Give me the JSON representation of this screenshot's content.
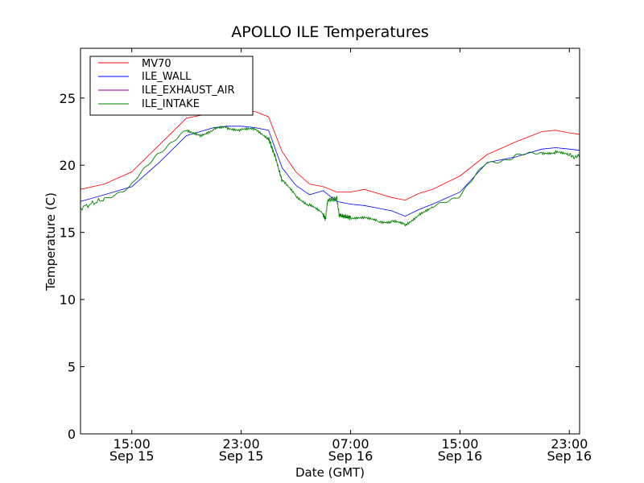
{
  "chart_data": {
    "type": "line",
    "title": "APOLLO ILE Temperatures",
    "xlabel": "Date (GMT)",
    "ylabel": "Temperature (C)",
    "xlim": [
      "2014-09-15T11:15",
      "2014-09-16T23:45"
    ],
    "ylim": [
      0,
      28.7
    ],
    "grid": false,
    "legend_position": "top-left",
    "yticks": [
      0,
      5,
      10,
      15,
      20,
      25
    ],
    "xticks": [
      {
        "x": "2014-09-15T15:00",
        "line1": "15:00",
        "line2": "Sep 15"
      },
      {
        "x": "2014-09-15T23:00",
        "line1": "23:00",
        "line2": "Sep 15"
      },
      {
        "x": "2014-09-16T07:00",
        "line1": "07:00",
        "line2": "Sep 16"
      },
      {
        "x": "2014-09-16T15:00",
        "line1": "15:00",
        "line2": "Sep 16"
      },
      {
        "x": "2014-09-16T23:00",
        "line1": "23:00",
        "line2": "Sep 16"
      }
    ],
    "series": [
      {
        "name": "MV70",
        "color": "#ff0000",
        "x": [
          "2014-09-15T11:15",
          "2014-09-15T13:00",
          "2014-09-15T15:00",
          "2014-09-15T17:00",
          "2014-09-15T19:00",
          "2014-09-15T20:00",
          "2014-09-15T21:00",
          "2014-09-15T22:00",
          "2014-09-15T23:00",
          "2014-09-16T00:00",
          "2014-09-16T01:00",
          "2014-09-16T02:00",
          "2014-09-16T03:00",
          "2014-09-16T04:00",
          "2014-09-16T05:00",
          "2014-09-16T06:00",
          "2014-09-16T07:00",
          "2014-09-16T08:00",
          "2014-09-16T09:00",
          "2014-09-16T10:00",
          "2014-09-16T11:00",
          "2014-09-16T12:00",
          "2014-09-16T13:00",
          "2014-09-16T15:00",
          "2014-09-16T17:00",
          "2014-09-16T19:00",
          "2014-09-16T21:00",
          "2014-09-16T22:00",
          "2014-09-16T23:00",
          "2014-09-16T23:45"
        ],
        "y": [
          18.2,
          18.6,
          19.5,
          21.5,
          23.5,
          23.7,
          23.8,
          23.9,
          24.0,
          24.0,
          23.6,
          21.0,
          19.5,
          18.6,
          18.4,
          18.0,
          18.0,
          18.2,
          17.9,
          17.6,
          17.4,
          17.9,
          18.2,
          19.2,
          20.8,
          21.7,
          22.5,
          22.6,
          22.4,
          22.3
        ]
      },
      {
        "name": "ILE_WALL",
        "color": "#0000ff",
        "x": [
          "2014-09-15T11:15",
          "2014-09-15T13:00",
          "2014-09-15T15:00",
          "2014-09-15T17:00",
          "2014-09-15T19:00",
          "2014-09-15T20:00",
          "2014-09-15T21:00",
          "2014-09-15T22:00",
          "2014-09-15T23:00",
          "2014-09-16T00:00",
          "2014-09-16T01:00",
          "2014-09-16T02:00",
          "2014-09-16T03:00",
          "2014-09-16T04:00",
          "2014-09-16T05:00",
          "2014-09-16T06:00",
          "2014-09-16T07:00",
          "2014-09-16T08:00",
          "2014-09-16T09:00",
          "2014-09-16T10:00",
          "2014-09-16T11:00",
          "2014-09-16T12:00",
          "2014-09-16T13:00",
          "2014-09-16T15:00",
          "2014-09-16T17:00",
          "2014-09-16T19:00",
          "2014-09-16T21:00",
          "2014-09-16T22:00",
          "2014-09-16T23:00",
          "2014-09-16T23:45"
        ],
        "y": [
          17.3,
          17.8,
          18.4,
          20.2,
          22.2,
          22.5,
          22.8,
          22.9,
          22.9,
          22.8,
          22.6,
          19.8,
          18.5,
          17.8,
          18.1,
          17.3,
          17.1,
          17.0,
          16.8,
          16.6,
          16.2,
          16.7,
          17.1,
          18.0,
          20.2,
          20.6,
          21.2,
          21.3,
          21.2,
          21.1
        ]
      },
      {
        "name": "ILE_EXHAUST_AIR",
        "color": "#800080",
        "x": [],
        "y": []
      },
      {
        "name": "ILE_INTAKE",
        "color": "#008000",
        "x": [
          "2014-09-15T11:15",
          "2014-09-15T13:00",
          "2014-09-15T15:00",
          "2014-09-15T17:00",
          "2014-09-15T19:00",
          "2014-09-15T20:00",
          "2014-09-15T21:00",
          "2014-09-15T22:00",
          "2014-09-15T23:00",
          "2014-09-16T00:00",
          "2014-09-16T01:00",
          "2014-09-16T01:30",
          "2014-09-16T02:00",
          "2014-09-16T03:00",
          "2014-09-16T04:00",
          "2014-09-16T05:00",
          "2014-09-16T05:10",
          "2014-09-16T05:20",
          "2014-09-16T06:00",
          "2014-09-16T06:10",
          "2014-09-16T06:30",
          "2014-09-16T07:00",
          "2014-09-16T08:00",
          "2014-09-16T09:00",
          "2014-09-16T10:00",
          "2014-09-16T11:00",
          "2014-09-16T12:00",
          "2014-09-16T13:00",
          "2014-09-16T15:00",
          "2014-09-16T17:00",
          "2014-09-16T19:00",
          "2014-09-16T21:00",
          "2014-09-16T22:00",
          "2014-09-16T23:00",
          "2014-09-16T23:45"
        ],
        "y": [
          16.8,
          17.5,
          18.5,
          21.0,
          22.5,
          22.3,
          22.6,
          22.8,
          22.7,
          22.6,
          22.0,
          20.6,
          18.8,
          17.8,
          17.0,
          16.3,
          16.0,
          17.4,
          17.5,
          16.3,
          16.2,
          16.1,
          16.0,
          15.9,
          15.8,
          15.5,
          16.4,
          16.8,
          17.8,
          20.2,
          20.6,
          21.0,
          20.9,
          20.7,
          20.6
        ]
      }
    ]
  }
}
